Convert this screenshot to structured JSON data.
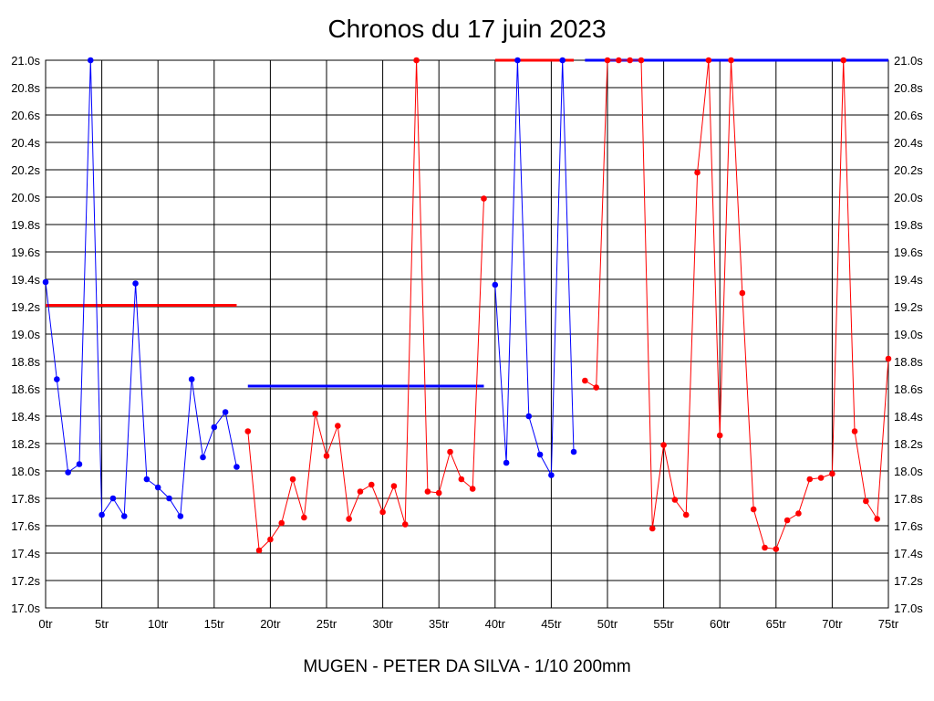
{
  "chart_data": {
    "type": "line",
    "title": "Chronos du 17 juin 2023",
    "xlabel": "MUGEN - PETER DA SILVA - 1/10 200mm",
    "ylabel": "",
    "xlim": [
      0,
      75
    ],
    "ylim": [
      17.0,
      21.0
    ],
    "grid": true,
    "x_ticks": [
      "0tr",
      "5tr",
      "10tr",
      "15tr",
      "20tr",
      "25tr",
      "30tr",
      "35tr",
      "40tr",
      "45tr",
      "50tr",
      "55tr",
      "60tr",
      "65tr",
      "70tr",
      "75tr"
    ],
    "y_ticks": [
      "21.0s",
      "20.8s",
      "20.6s",
      "20.4s",
      "20.2s",
      "20.0s",
      "19.8s",
      "19.6s",
      "19.4s",
      "19.2s",
      "19.0s",
      "18.8s",
      "18.6s",
      "18.4s",
      "18.2s",
      "18.0s",
      "17.8s",
      "17.6s",
      "17.4s",
      "17.2s",
      "17.0s"
    ],
    "colors": {
      "blue": "#0000ff",
      "red": "#ff0000",
      "grid": "#000000"
    },
    "series": [
      {
        "color": "#0000ff",
        "x": [
          0,
          1,
          2,
          3,
          4,
          5,
          6,
          7,
          8,
          9,
          10,
          11,
          12,
          13,
          14,
          15,
          16,
          17
        ],
        "y": [
          19.38,
          18.67,
          17.99,
          18.05,
          21.0,
          17.68,
          17.8,
          17.67,
          19.37,
          17.94,
          17.88,
          17.8,
          17.67,
          18.67,
          18.1,
          18.32,
          18.43,
          18.03
        ]
      },
      {
        "color": "#ff0000",
        "x": [
          18,
          19,
          20,
          21,
          22,
          23,
          24,
          25,
          26,
          27,
          28,
          29,
          30,
          31,
          32,
          33,
          34,
          35,
          36,
          37,
          38,
          39
        ],
        "y": [
          18.29,
          17.42,
          17.5,
          17.62,
          17.94,
          17.66,
          18.42,
          18.11,
          18.33,
          17.65,
          17.85,
          17.9,
          17.7,
          17.89,
          17.61,
          21.0,
          17.85,
          17.84,
          18.14,
          17.94,
          17.87,
          19.99
        ]
      },
      {
        "color": "#0000ff",
        "x": [
          40,
          41,
          42,
          43,
          44,
          45,
          46,
          47
        ],
        "y": [
          19.36,
          18.06,
          21.0,
          18.4,
          18.12,
          17.97,
          21.0,
          18.14
        ]
      },
      {
        "color": "#ff0000",
        "x": [
          48,
          49,
          50,
          51,
          52,
          53,
          54,
          55,
          56,
          57,
          58,
          59,
          60,
          61,
          62,
          63,
          64,
          65,
          66,
          67,
          68,
          69,
          70,
          71,
          72,
          73,
          74,
          75
        ],
        "y": [
          18.66,
          18.61,
          21.0,
          21.0,
          21.0,
          21.0,
          17.58,
          18.19,
          17.79,
          17.68,
          20.18,
          21.0,
          18.26,
          21.0,
          19.3,
          17.72,
          17.44,
          17.43,
          17.64,
          17.69,
          17.94,
          17.95,
          17.98,
          21.0,
          18.29,
          17.78,
          17.65,
          18.82
        ]
      }
    ],
    "reference_lines": [
      {
        "color": "#ff0000",
        "x": [
          0,
          17
        ],
        "y": 19.21
      },
      {
        "color": "#0000ff",
        "x": [
          18,
          39
        ],
        "y": 18.62
      },
      {
        "color": "#ff0000",
        "x": [
          40,
          47
        ],
        "y": 21.0
      },
      {
        "color": "#0000ff",
        "x": [
          48,
          75
        ],
        "y": 21.0
      }
    ]
  }
}
